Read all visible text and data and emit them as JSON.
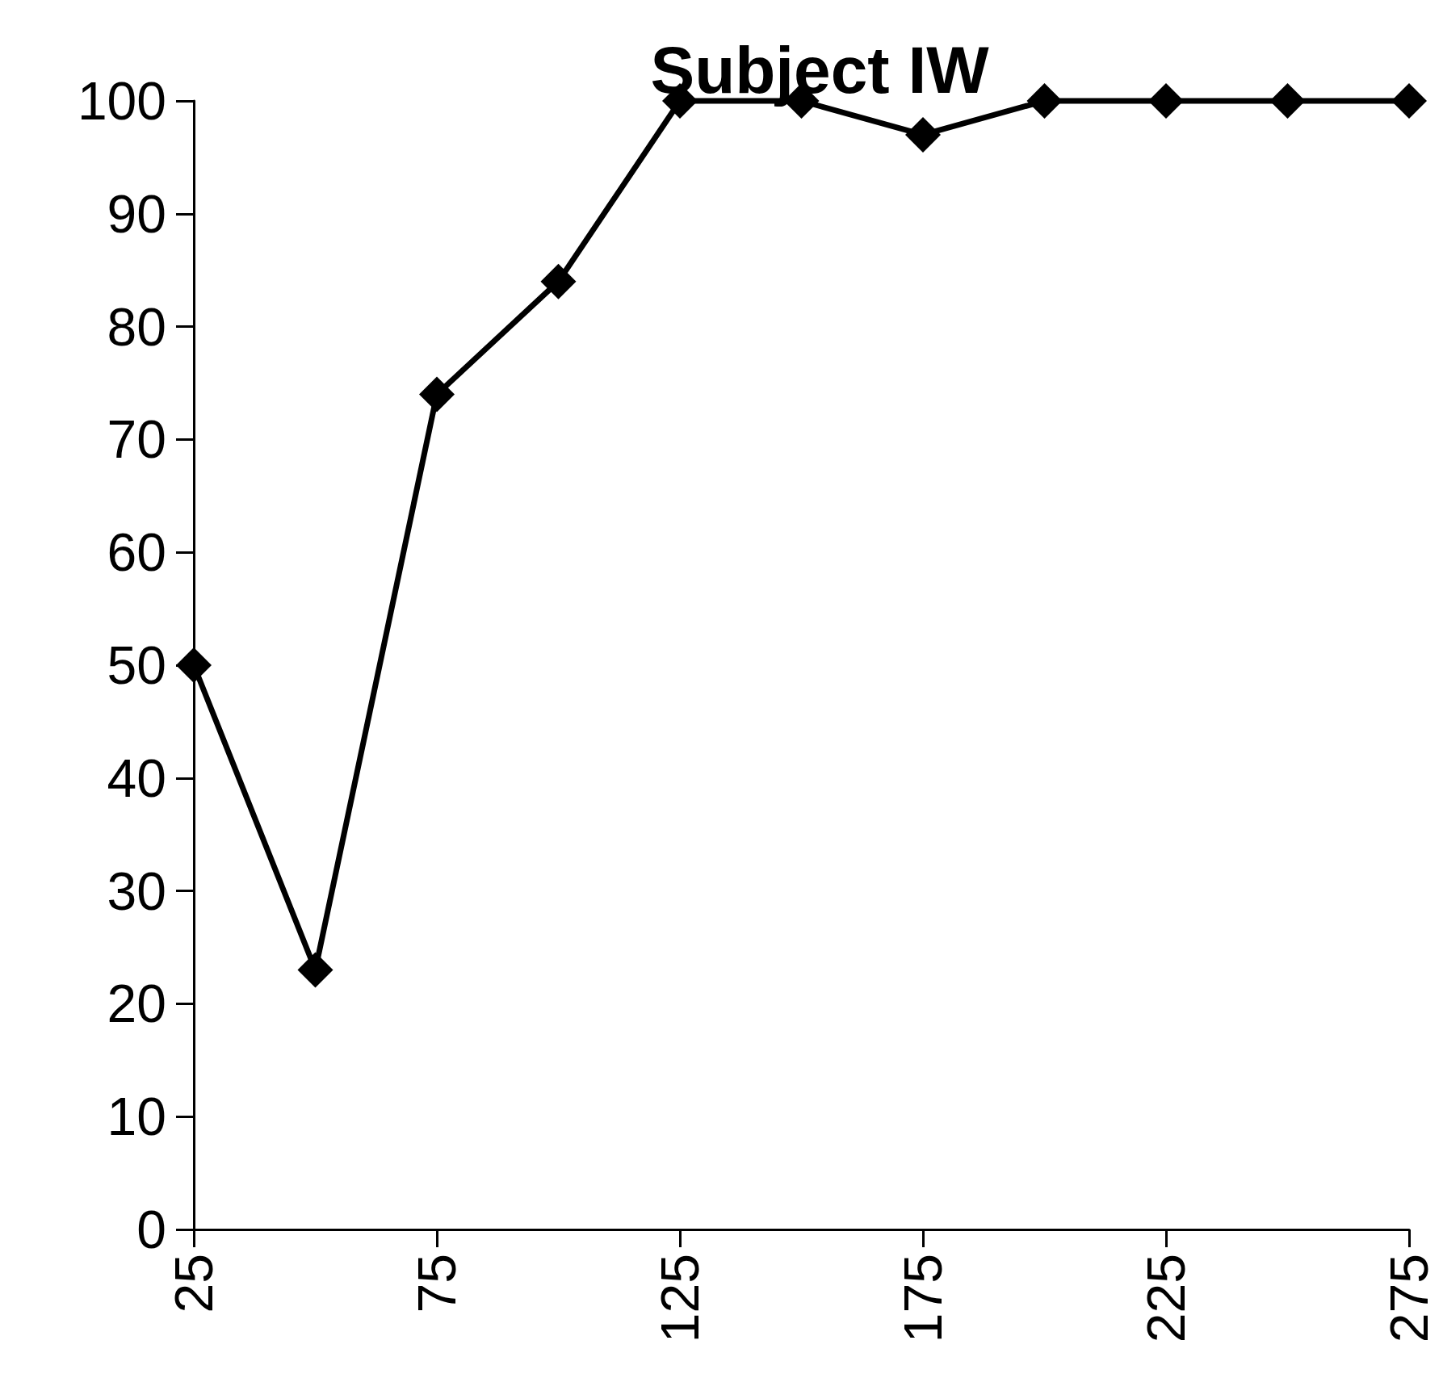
{
  "chart_data": {
    "type": "line",
    "title": "Subject IW",
    "x": [
      25,
      50,
      75,
      100,
      125,
      150,
      175,
      200,
      225,
      250,
      275
    ],
    "series": [
      {
        "color": "#000000",
        "values": [
          50,
          23,
          74,
          84,
          100,
          100,
          97,
          100,
          100,
          100,
          100
        ]
      }
    ],
    "xlim": [
      25,
      275
    ],
    "xticks": [
      25,
      75,
      125,
      175,
      225,
      275
    ],
    "ylim": [
      0,
      100
    ],
    "yticks": [
      0,
      10,
      20,
      30,
      40,
      50,
      60,
      70,
      80,
      90,
      100
    ],
    "grid": false,
    "marker": "diamond",
    "line_style": "solid"
  }
}
